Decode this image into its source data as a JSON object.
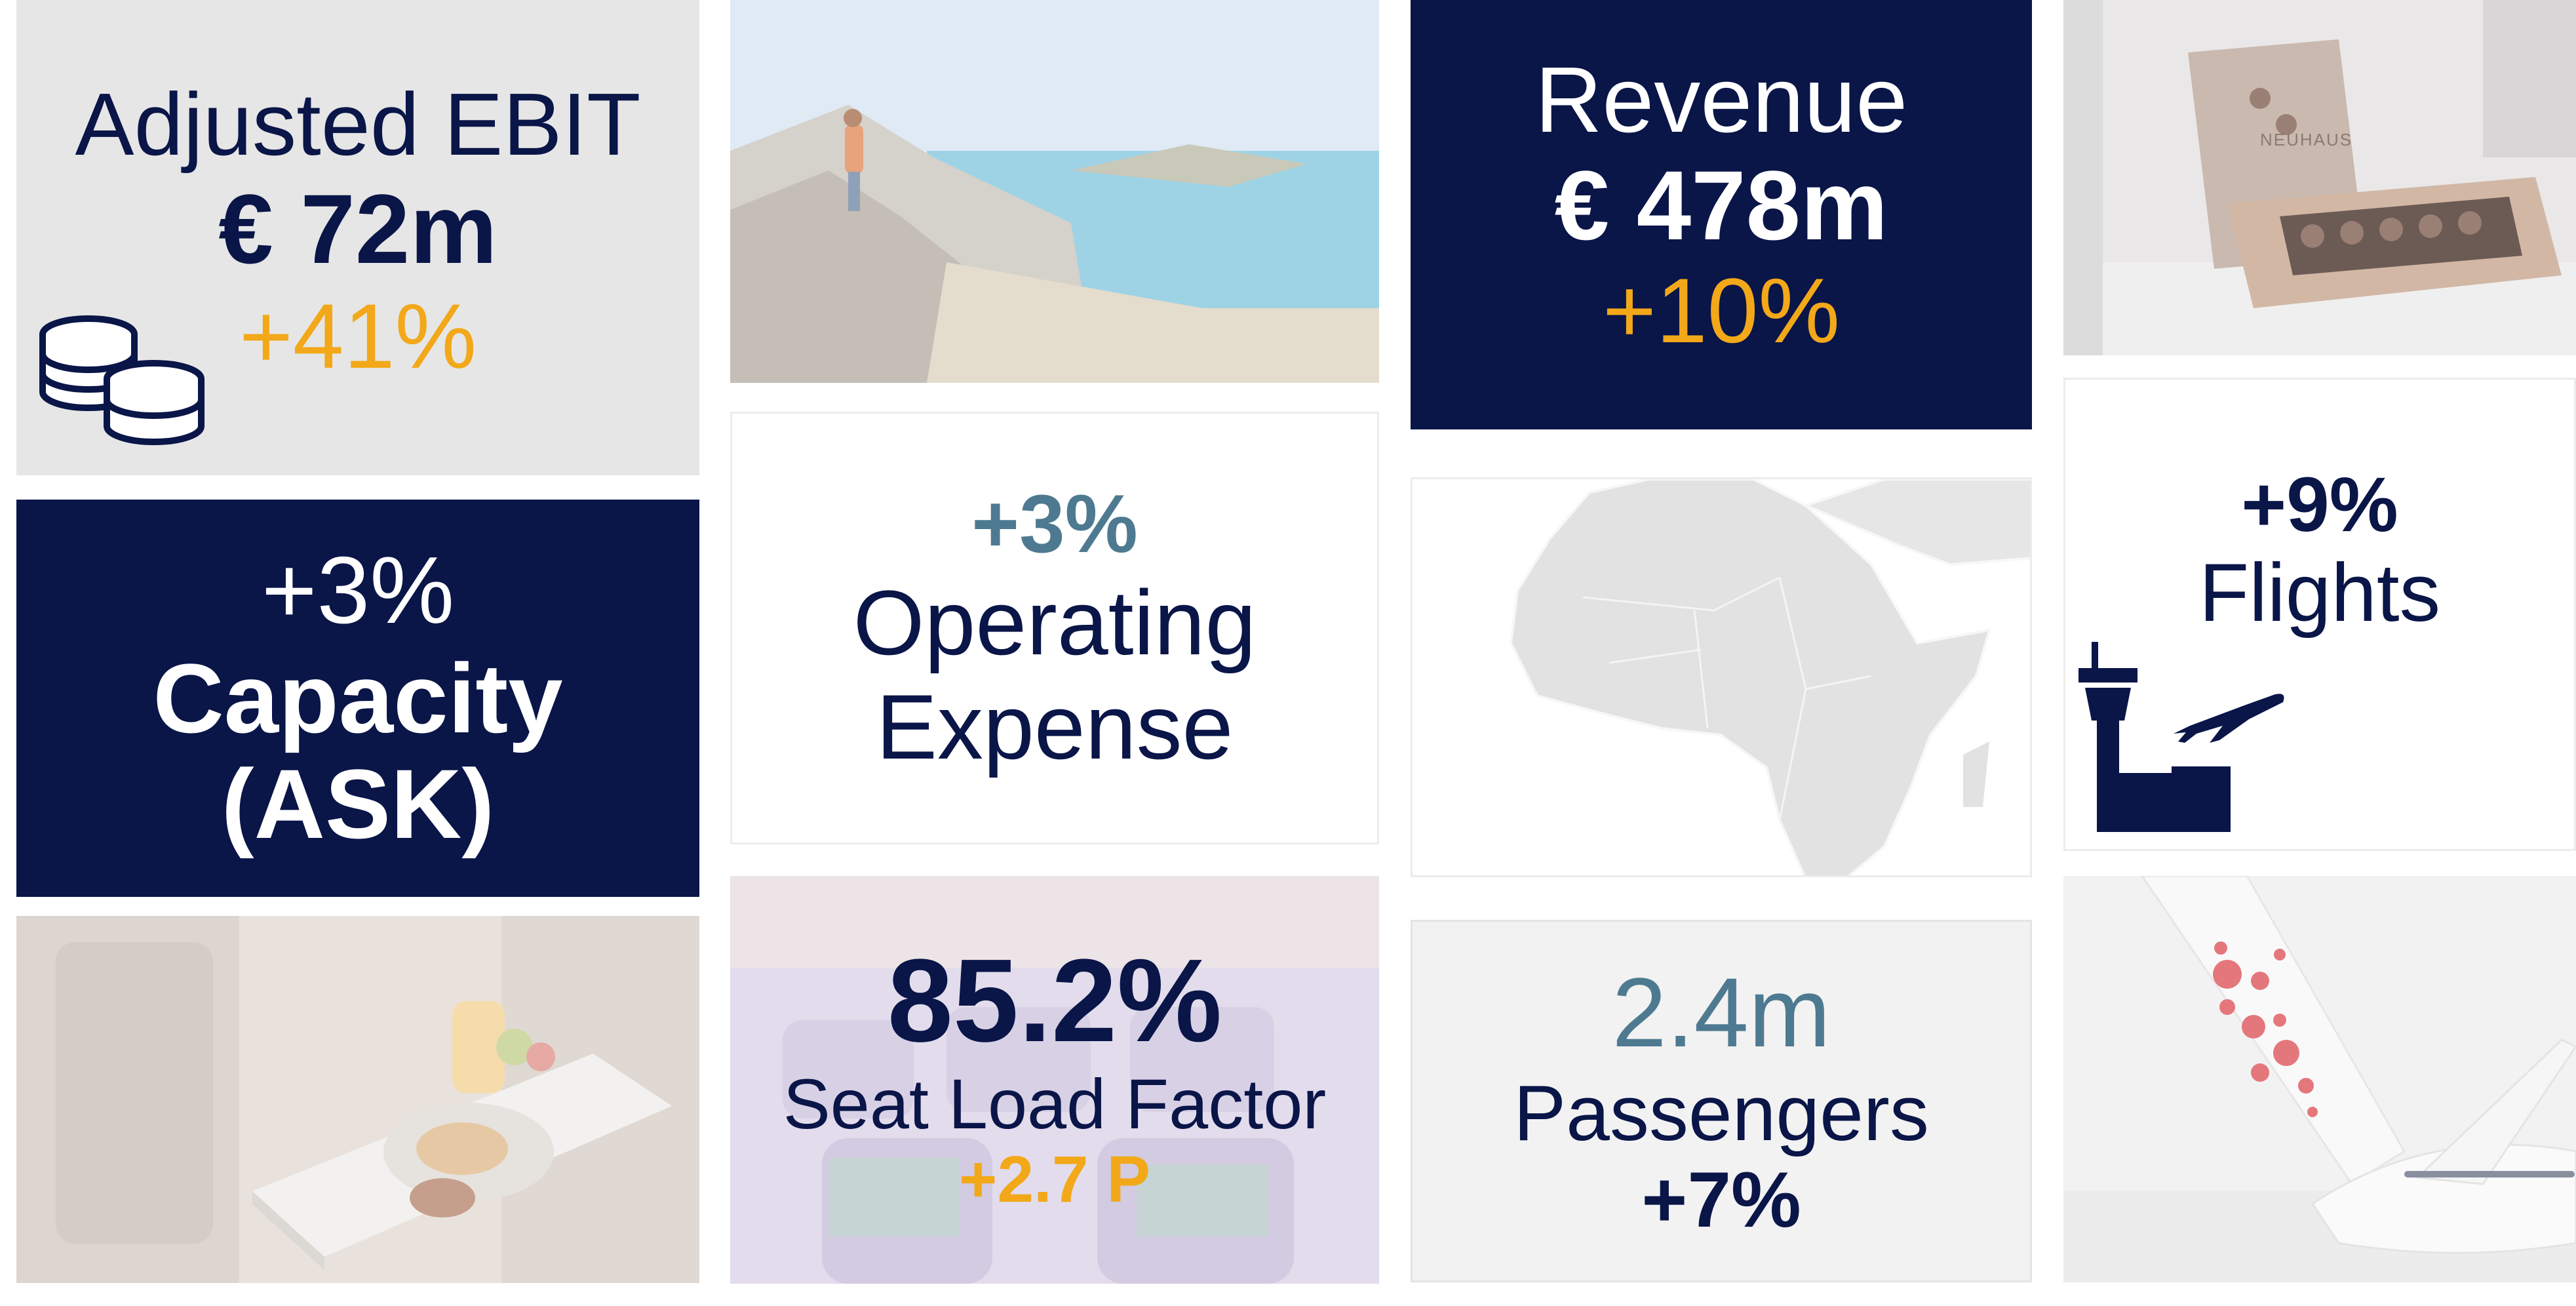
{
  "ebit": {
    "label": "Adjusted EBIT",
    "value": "€ 72m",
    "change": "+41%"
  },
  "revenue": {
    "label": "Revenue",
    "value": "€ 478m",
    "change": "+10%"
  },
  "capacity": {
    "change": "+3%",
    "line1": "Capacity",
    "line2": "(ASK)"
  },
  "opex": {
    "change": "+3%",
    "line1": "Operating",
    "line2": "Expense"
  },
  "flights": {
    "change": "+9%",
    "label": "Flights"
  },
  "seat_load": {
    "value": "85.2%",
    "label": "Seat Load Factor",
    "change": "+2.7 P"
  },
  "passengers": {
    "value": "2.4m",
    "label": "Passengers",
    "change": "+7%"
  },
  "chocolates": {
    "brand": "NEUHAUS"
  },
  "colors": {
    "navy": "#0a1548",
    "gold": "#f2a818",
    "slate": "#4e7a91",
    "grey": "#e6e6e6"
  },
  "icons": [
    "coins-icon",
    "control-tower-icon",
    "airplane-icon"
  ]
}
